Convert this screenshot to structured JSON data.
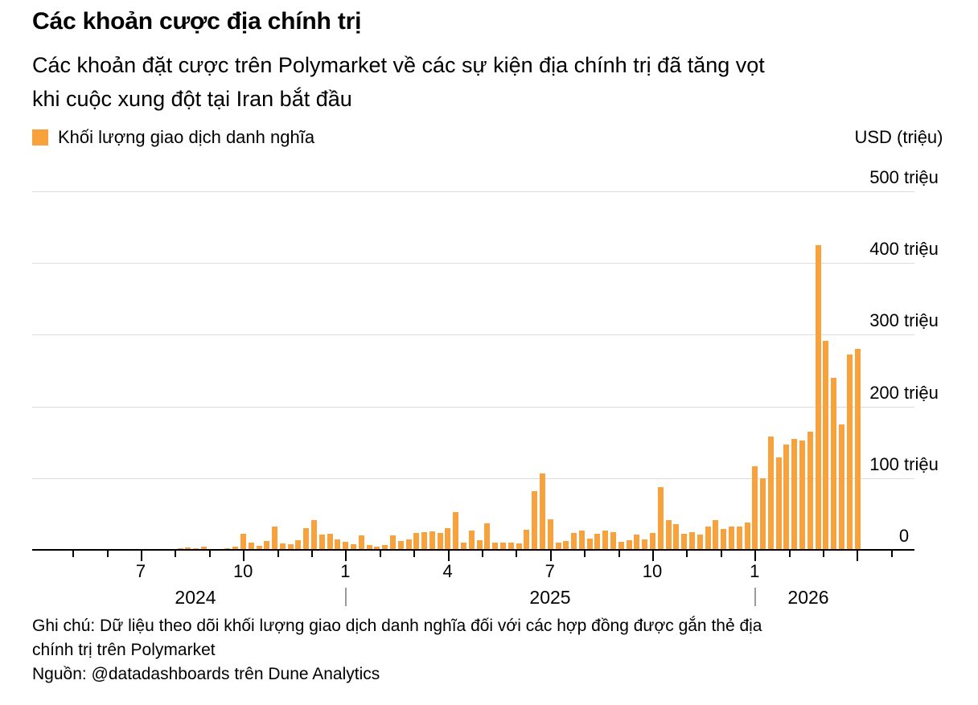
{
  "header": {
    "title": "Các khoản cược địa chính trị",
    "subtitle_line1": "Các khoản đặt cược trên Polymarket về các sự kiện địa chính trị đã tăng vọt",
    "subtitle_line2": "khi cuộc xung đột tại Iran bắt đầu"
  },
  "legend": {
    "label": "Khối lượng giao dịch danh nghĩa"
  },
  "y_axis": {
    "unit_label": "USD (triệu)",
    "ticks": [
      {
        "label": "500 triệu",
        "value": 500
      },
      {
        "label": "400 triệu",
        "value": 400
      },
      {
        "label": "300 triệu",
        "value": 300
      },
      {
        "label": "200 triệu",
        "value": 200
      },
      {
        "label": "100 triệu",
        "value": 100
      },
      {
        "label": "0",
        "value": 0
      }
    ]
  },
  "x_axis": {
    "month_labels": [
      "7",
      "10",
      "1",
      "4",
      "7",
      "10",
      "1"
    ],
    "year_labels": [
      "2024",
      "2025",
      "2026"
    ]
  },
  "chart_data": {
    "type": "bar",
    "title": "Các khoản cược địa chính trị",
    "ylabel": "USD (triệu)",
    "ylim": [
      0,
      500
    ],
    "y_gridlines": [
      100,
      200,
      300,
      400,
      500
    ],
    "grid": "on",
    "legend_position": "top-left",
    "series_name": "Khối lượng giao dịch danh nghĩa",
    "interval": "weekly",
    "x_start_label": "7/2024",
    "x_end_label": "4/2026",
    "x_tick_labels": [
      "7",
      "10",
      "1",
      "4",
      "7",
      "10",
      "1"
    ],
    "x_year_labels": [
      "2024",
      "2025",
      "2026"
    ],
    "values": [
      1,
      1,
      2,
      3,
      2,
      5,
      1,
      1,
      2,
      5,
      22,
      10,
      6,
      12,
      32,
      9,
      8,
      13,
      30,
      41,
      21,
      22,
      15,
      11,
      8,
      20,
      7,
      5,
      7,
      20,
      12,
      15,
      23,
      25,
      26,
      24,
      30,
      53,
      10,
      27,
      14,
      37,
      10,
      10,
      10,
      9,
      28,
      82,
      107,
      43,
      10,
      12,
      23,
      27,
      16,
      22,
      27,
      25,
      11,
      13,
      21,
      15,
      23,
      87,
      41,
      36,
      22,
      25,
      21,
      33,
      41,
      29,
      32,
      32,
      38,
      117,
      100,
      158,
      129,
      147,
      155,
      153,
      165,
      425,
      291,
      240,
      175,
      272,
      280
    ]
  },
  "colors": {
    "bar": "#F7A23C",
    "gridline": "#DCDCDC",
    "axis": "#000000",
    "year_separator": "#9B9B9B",
    "text": "#000000"
  },
  "footer": {
    "note_line1": "Ghi chú: Dữ liệu theo dõi khối lượng giao dịch danh nghĩa đối với các hợp đồng được gắn thẻ địa",
    "note_line2": "chính trị trên Polymarket",
    "source": "Nguồn: @datadashboards trên Dune Analytics"
  }
}
